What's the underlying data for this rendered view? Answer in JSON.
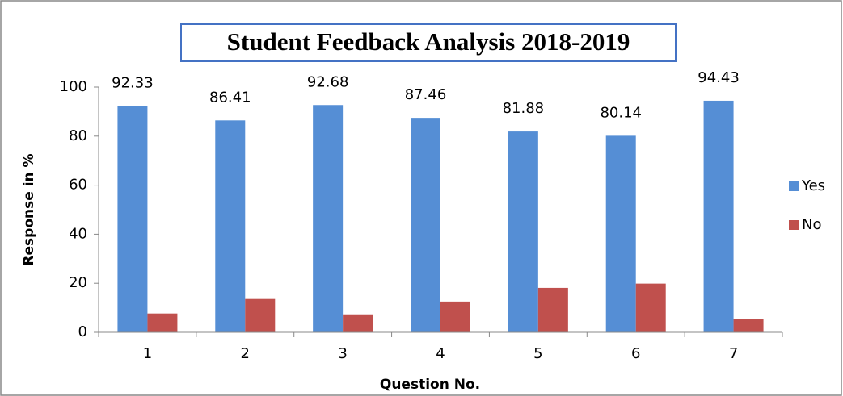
{
  "chart_data": {
    "type": "bar",
    "title": "Student Feedback Analysis 2018-2019",
    "x_label": "Question No.",
    "y_label": "Response in %",
    "categories": [
      "1",
      "2",
      "3",
      "4",
      "5",
      "6",
      "7"
    ],
    "series": [
      {
        "name": "Yes",
        "color": "#558ed5",
        "values": [
          92.33,
          86.41,
          92.68,
          87.46,
          81.88,
          80.14,
          94.43
        ]
      },
      {
        "name": "No",
        "color": "#c0504d",
        "values": [
          7.67,
          13.59,
          7.32,
          12.54,
          18.12,
          19.86,
          5.57
        ]
      }
    ],
    "data_labels_series": 0,
    "ylim": [
      0,
      100
    ],
    "yticks": [
      0,
      20,
      40,
      60,
      80,
      100
    ],
    "grid": false,
    "legend": "right"
  }
}
